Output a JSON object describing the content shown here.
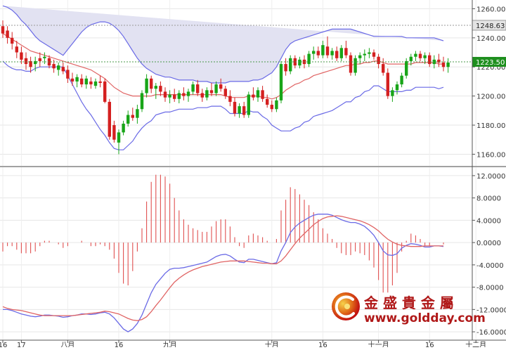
{
  "price_panel": {
    "y_ticks": [
      "1260.00",
      "1240.00",
      "1220.00",
      "1200.00",
      "1180.00",
      "1160.00"
    ],
    "price_tag": "1223.50",
    "reference_tag": "1248.63"
  },
  "macd_panel": {
    "y_ticks": [
      "12.0000",
      "8.0000",
      "4.0000",
      "0.0000",
      "-4.0000",
      "-8.0000",
      "-12.0000",
      "-16.0000"
    ]
  },
  "x_axis": {
    "labels": [
      {
        "text": "16",
        "day": 0
      },
      {
        "text": "17",
        "day": 4
      },
      {
        "text": "八月",
        "day": 14
      },
      {
        "text": "16",
        "day": 25
      },
      {
        "text": "九月",
        "day": 36
      },
      {
        "text": "十月",
        "day": 58
      },
      {
        "text": "16",
        "day": 69
      },
      {
        "text": "十一月",
        "day": 81
      },
      {
        "text": "16",
        "day": 92
      },
      {
        "text": "十二月",
        "day": 102
      }
    ]
  },
  "watermark": {
    "chinese": "金 盛 貴 金 屬",
    "url": "www.goldday.com"
  },
  "colors": {
    "bull": "#18a518",
    "bear": "#d42020",
    "band": "#6a6ae6",
    "band_fill": "#e2e2f2",
    "ma": "#e06464",
    "macd_line": "#6a6ae6",
    "signal_line": "#e06464",
    "histogram": "#e05050"
  },
  "chart_data": [
    {
      "type": "candlestick",
      "title": "",
      "indicators": [
        "Bollinger Bands (upper, middle, lower)"
      ],
      "ylim": [
        1152,
        1266
      ],
      "ohlc": [
        [
          1248,
          1252,
          1240,
          1243
        ],
        [
          1245,
          1248,
          1236,
          1240
        ],
        [
          1240,
          1244,
          1232,
          1236
        ],
        [
          1234,
          1238,
          1226,
          1230
        ],
        [
          1230,
          1234,
          1222,
          1225
        ],
        [
          1226,
          1230,
          1218,
          1222
        ],
        [
          1224,
          1227,
          1216,
          1220
        ],
        [
          1222,
          1227,
          1217,
          1224
        ],
        [
          1226,
          1230,
          1220,
          1224
        ],
        [
          1226,
          1230,
          1222,
          1227
        ],
        [
          1226,
          1228,
          1219,
          1221
        ],
        [
          1222,
          1225,
          1216,
          1219
        ],
        [
          1218,
          1223,
          1214,
          1221
        ],
        [
          1220,
          1223,
          1215,
          1217
        ],
        [
          1218,
          1221,
          1209,
          1212
        ],
        [
          1212,
          1216,
          1207,
          1210
        ],
        [
          1210,
          1215,
          1206,
          1213
        ],
        [
          1212,
          1215,
          1206,
          1208
        ],
        [
          1208,
          1214,
          1205,
          1212
        ],
        [
          1210,
          1213,
          1205,
          1208
        ],
        [
          1207,
          1212,
          1205,
          1210
        ],
        [
          1210,
          1214,
          1206,
          1209
        ],
        [
          1210,
          1212,
          1195,
          1196
        ],
        [
          1196,
          1198,
          1170,
          1172
        ],
        [
          1180,
          1183,
          1168,
          1170
        ],
        [
          1168,
          1177,
          1160,
          1175
        ],
        [
          1175,
          1183,
          1173,
          1181
        ],
        [
          1181,
          1190,
          1179,
          1187
        ],
        [
          1187,
          1192,
          1183,
          1185
        ],
        [
          1185,
          1194,
          1181,
          1191
        ],
        [
          1191,
          1204,
          1189,
          1202
        ],
        [
          1202,
          1215,
          1199,
          1212
        ],
        [
          1212,
          1214,
          1202,
          1205
        ],
        [
          1205,
          1209,
          1198,
          1207
        ],
        [
          1207,
          1210,
          1200,
          1203
        ],
        [
          1203,
          1206,
          1196,
          1199
        ],
        [
          1199,
          1204,
          1195,
          1201
        ],
        [
          1201,
          1205,
          1196,
          1198
        ],
        [
          1198,
          1204,
          1195,
          1202
        ],
        [
          1202,
          1206,
          1197,
          1200
        ],
        [
          1200,
          1205,
          1196,
          1203
        ],
        [
          1203,
          1210,
          1201,
          1208
        ],
        [
          1208,
          1211,
          1200,
          1202
        ],
        [
          1202,
          1205,
          1196,
          1199
        ],
        [
          1199,
          1206,
          1197,
          1204
        ],
        [
          1204,
          1209,
          1200,
          1202
        ],
        [
          1202,
          1210,
          1200,
          1208
        ],
        [
          1208,
          1212,
          1203,
          1205
        ],
        [
          1205,
          1207,
          1198,
          1200
        ],
        [
          1200,
          1204,
          1193,
          1196
        ],
        [
          1196,
          1199,
          1186,
          1188
        ],
        [
          1188,
          1195,
          1185,
          1193
        ],
        [
          1193,
          1196,
          1185,
          1187
        ],
        [
          1187,
          1203,
          1185,
          1201
        ],
        [
          1201,
          1206,
          1197,
          1199
        ],
        [
          1199,
          1206,
          1196,
          1204
        ],
        [
          1204,
          1207,
          1196,
          1198
        ],
        [
          1198,
          1201,
          1192,
          1194
        ],
        [
          1194,
          1197,
          1189,
          1191
        ],
        [
          1191,
          1199,
          1189,
          1197
        ],
        [
          1197,
          1224,
          1195,
          1222
        ],
        [
          1222,
          1226,
          1214,
          1217
        ],
        [
          1217,
          1228,
          1215,
          1226
        ],
        [
          1226,
          1228,
          1219,
          1221
        ],
        [
          1221,
          1227,
          1219,
          1225
        ],
        [
          1225,
          1228,
          1219,
          1222
        ],
        [
          1222,
          1231,
          1220,
          1229
        ],
        [
          1229,
          1234,
          1225,
          1231
        ],
        [
          1231,
          1234,
          1226,
          1228
        ],
        [
          1228,
          1238,
          1226,
          1235
        ],
        [
          1234,
          1241,
          1226,
          1228
        ],
        [
          1228,
          1233,
          1225,
          1231
        ],
        [
          1231,
          1234,
          1224,
          1226
        ],
        [
          1226,
          1235,
          1224,
          1233
        ],
        [
          1233,
          1238,
          1226,
          1228
        ],
        [
          1228,
          1230,
          1214,
          1216
        ],
        [
          1216,
          1228,
          1214,
          1226
        ],
        [
          1226,
          1230,
          1222,
          1228
        ],
        [
          1228,
          1232,
          1224,
          1229
        ],
        [
          1229,
          1233,
          1226,
          1230
        ],
        [
          1230,
          1232,
          1225,
          1227
        ],
        [
          1227,
          1229,
          1219,
          1222
        ],
        [
          1222,
          1226,
          1214,
          1216
        ],
        [
          1216,
          1219,
          1198,
          1200
        ],
        [
          1200,
          1206,
          1196,
          1204
        ],
        [
          1204,
          1210,
          1201,
          1208
        ],
        [
          1208,
          1216,
          1206,
          1214
        ],
        [
          1214,
          1226,
          1212,
          1224
        ],
        [
          1224,
          1229,
          1221,
          1227
        ],
        [
          1227,
          1231,
          1224,
          1229
        ],
        [
          1229,
          1231,
          1224,
          1226
        ],
        [
          1226,
          1230,
          1222,
          1228
        ],
        [
          1228,
          1230,
          1220,
          1222
        ],
        [
          1222,
          1228,
          1219,
          1225
        ],
        [
          1225,
          1229,
          1220,
          1223
        ],
        [
          1223,
          1227,
          1217,
          1220
        ],
        [
          1220,
          1226,
          1216,
          1223
        ]
      ],
      "upper_band": [
        1262,
        1261,
        1259,
        1256,
        1252,
        1249,
        1245,
        1241,
        1238,
        1236,
        1234,
        1232,
        1230,
        1228,
        1232,
        1236,
        1240,
        1244,
        1247,
        1249,
        1250,
        1251,
        1251,
        1250,
        1248,
        1245,
        1241,
        1236,
        1231,
        1226,
        1222,
        1219,
        1217,
        1215,
        1214,
        1213,
        1213,
        1212,
        1211,
        1211,
        1211,
        1211,
        1210,
        1210,
        1210,
        1209,
        1209,
        1209,
        1209,
        1210,
        1210,
        1210,
        1210,
        1210,
        1211,
        1211,
        1212,
        1214,
        1216,
        1220,
        1226,
        1232,
        1236,
        1238,
        1239,
        1240,
        1241,
        1242,
        1243,
        1244,
        1245,
        1246,
        1246,
        1246,
        1246,
        1246,
        1245,
        1244,
        1243,
        1242,
        1241,
        1241,
        1241,
        1241,
        1241,
        1241,
        1241,
        1240,
        1240,
        1240,
        1240,
        1240,
        1240,
        1240,
        1239,
        1238
      ],
      "middle_band": [
        1243,
        1241,
        1239,
        1237,
        1235,
        1233,
        1231,
        1230,
        1229,
        1228,
        1227,
        1226,
        1225,
        1224,
        1223,
        1222,
        1221,
        1220,
        1219,
        1218,
        1216,
        1214,
        1212,
        1209,
        1206,
        1204,
        1202,
        1201,
        1200,
        1200,
        1200,
        1200,
        1200,
        1201,
        1201,
        1201,
        1201,
        1201,
        1201,
        1201,
        1201,
        1201,
        1201,
        1201,
        1201,
        1201,
        1201,
        1201,
        1200,
        1199,
        1199,
        1199,
        1199,
        1200,
        1200,
        1200,
        1199,
        1199,
        1198,
        1199,
        1201,
        1204,
        1206,
        1208,
        1209,
        1211,
        1212,
        1214,
        1215,
        1216,
        1217,
        1218,
        1219,
        1220,
        1221,
        1221,
        1222,
        1222,
        1223,
        1223,
        1224,
        1224,
        1223,
        1222,
        1222,
        1222,
        1222,
        1222,
        1222,
        1223,
        1223,
        1223,
        1223,
        1223,
        1222,
        1222
      ],
      "lower_band": [
        1224,
        1221,
        1219,
        1218,
        1218,
        1217,
        1217,
        1219,
        1220,
        1220,
        1220,
        1220,
        1220,
        1220,
        1214,
        1208,
        1202,
        1196,
        1191,
        1187,
        1182,
        1177,
        1173,
        1168,
        1164,
        1163,
        1163,
        1166,
        1169,
        1174,
        1178,
        1181,
        1183,
        1187,
        1188,
        1189,
        1189,
        1190,
        1191,
        1191,
        1191,
        1191,
        1192,
        1192,
        1192,
        1193,
        1193,
        1193,
        1191,
        1188,
        1188,
        1188,
        1188,
        1190,
        1189,
        1189,
        1186,
        1184,
        1180,
        1178,
        1176,
        1176,
        1176,
        1178,
        1179,
        1182,
        1183,
        1186,
        1187,
        1188,
        1189,
        1190,
        1192,
        1194,
        1196,
        1196,
        1199,
        1200,
        1203,
        1204,
        1207,
        1207,
        1205,
        1203,
        1203,
        1203,
        1203,
        1204,
        1204,
        1206,
        1206,
        1206,
        1206,
        1206,
        1205,
        1206
      ]
    },
    {
      "type": "macd",
      "title": "",
      "ylim": [
        -17.5,
        13.5
      ],
      "macd": [
        -12,
        -12,
        -12.2,
        -12.5,
        -12.8,
        -13,
        -13.2,
        -13.3,
        -13.2,
        -13,
        -13,
        -13.1,
        -13.2,
        -13.4,
        -13.3,
        -13.1,
        -13,
        -12.8,
        -12.8,
        -12.9,
        -12.8,
        -12.6,
        -12.5,
        -12.8,
        -13.5,
        -14.5,
        -15.5,
        -16,
        -15.5,
        -14.5,
        -13,
        -11,
        -9,
        -7.5,
        -6.5,
        -5.5,
        -4.8,
        -4.6,
        -4.6,
        -4.5,
        -4.3,
        -4.1,
        -3.9,
        -3.7,
        -3.5,
        -3,
        -2.5,
        -2.2,
        -2.1,
        -2.4,
        -3,
        -3.5,
        -3.6,
        -3,
        -3,
        -3.2,
        -3.4,
        -3.6,
        -3.8,
        -3.6,
        -1.5,
        0,
        1.8,
        2.8,
        3.5,
        4,
        4.5,
        4.9,
        5.1,
        5.1,
        5.1,
        4.9,
        4.5,
        4.1,
        3.8,
        3.6,
        3.6,
        3.3,
        2.9,
        2.2,
        1.3,
        0,
        -1.5,
        -2.2,
        -2.3,
        -2,
        -1,
        -0.5,
        -0.2,
        -0.3,
        -0.5,
        -0.8,
        -0.8,
        -0.6,
        -0.6,
        -0.7
      ],
      "signal": [
        -11.5,
        -11.8,
        -12,
        -12.1,
        -12.2,
        -12.4,
        -12.6,
        -12.8,
        -13,
        -13.1,
        -13.1,
        -13.1,
        -13.1,
        -13.1,
        -13.1,
        -13.1,
        -13,
        -12.9,
        -12.8,
        -12.7,
        -12.6,
        -12.5,
        -12.3,
        -12.4,
        -12.6,
        -12.8,
        -13.2,
        -13.6,
        -13.9,
        -14,
        -13.8,
        -13.3,
        -12.4,
        -11.3,
        -10.3,
        -9.2,
        -8.1,
        -7.1,
        -6.4,
        -5.8,
        -5.3,
        -4.9,
        -4.6,
        -4.3,
        -4.1,
        -3.9,
        -3.7,
        -3.5,
        -3.4,
        -3.3,
        -3.3,
        -3.3,
        -3.3,
        -3.4,
        -3.5,
        -3.6,
        -3.7,
        -3.7,
        -3.8,
        -3.8,
        -3.3,
        -2.4,
        -1.3,
        -0.2,
        0.8,
        1.6,
        2.4,
        3.2,
        3.8,
        4.3,
        4.6,
        4.7,
        4.8,
        4.7,
        4.5,
        4.3,
        4.1,
        3.9,
        3.6,
        3.2,
        2.7,
        2.1,
        1.3,
        0.6,
        0.1,
        -0.3,
        -0.5,
        -0.6,
        -0.7,
        -0.7,
        -0.7,
        -0.6,
        -0.6,
        -0.6,
        -0.6,
        -0.6
      ]
    }
  ]
}
